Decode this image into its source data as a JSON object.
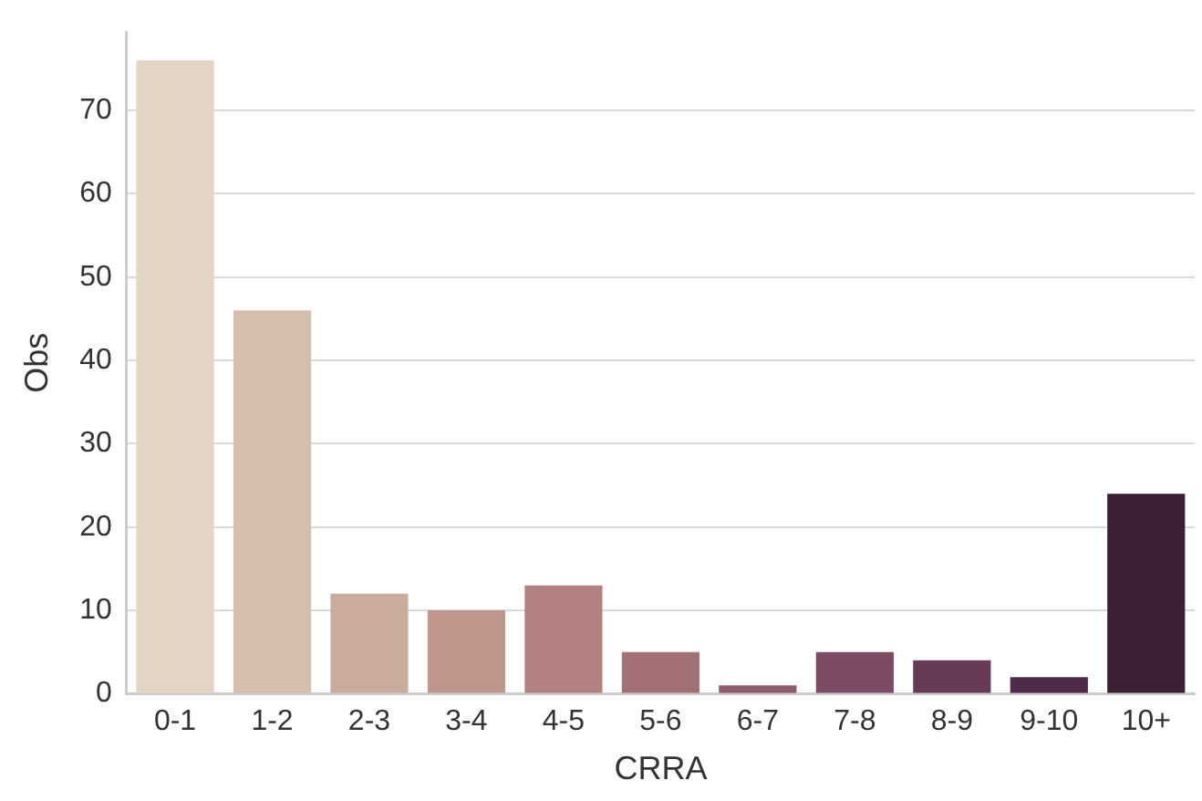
{
  "chart_data": {
    "type": "bar",
    "xlabel": "CRRA",
    "ylabel": "Obs",
    "categories": [
      "0-1",
      "1-2",
      "2-3",
      "3-4",
      "4-5",
      "5-6",
      "6-7",
      "7-8",
      "8-9",
      "9-10",
      "10+"
    ],
    "values": [
      76,
      46,
      12,
      10,
      13,
      5,
      1,
      5,
      4,
      2,
      24
    ],
    "colors": [
      "#e2d5c6",
      "#d5beae",
      "#caac9e",
      "#c0978d",
      "#b38280",
      "#a37076",
      "#8f5c6c",
      "#7c4a62",
      "#673b58",
      "#4f2b4a",
      "#3a1f35"
    ],
    "ylim": [
      0,
      79.4
    ],
    "yticks": [
      0,
      10,
      20,
      30,
      40,
      50,
      60,
      70
    ],
    "grid": "y",
    "legend": false
  }
}
